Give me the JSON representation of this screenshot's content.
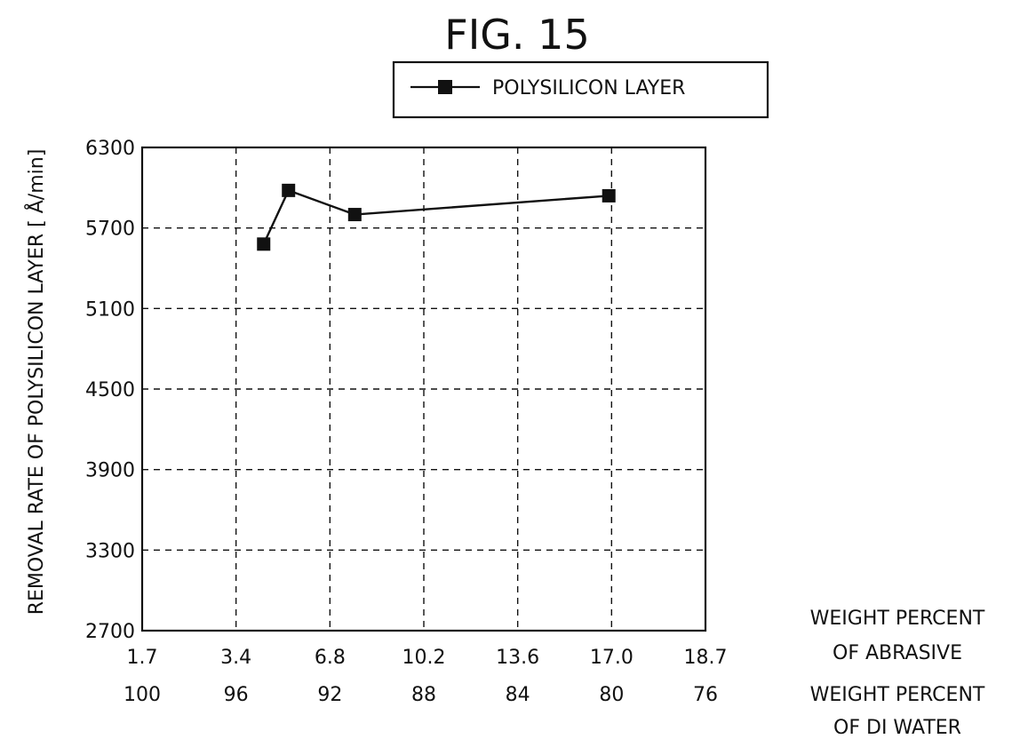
{
  "chart_data": {
    "type": "line",
    "title": "FIG. 15",
    "ylabel": "REMOVAL RATE OF POLYSILICON LAYER [ Å/min]",
    "xlabel_top": [
      "WEIGHT PERCENT",
      "OF ABRASIVE"
    ],
    "xlabel_bottom": [
      "WEIGHT PERCENT",
      "OF DI WATER"
    ],
    "x_ticks": [
      "1.7",
      "3.4",
      "6.8",
      "10.2",
      "13.6",
      "17.0",
      "18.7"
    ],
    "x_ticks_secondary": [
      "100",
      "96",
      "92",
      "88",
      "84",
      "80",
      "76"
    ],
    "y_ticks": [
      "6300",
      "5700",
      "5100",
      "4500",
      "3900",
      "3300",
      "2700"
    ],
    "ylim": [
      2700,
      6300
    ],
    "grid": true,
    "legend_position": "top-right",
    "series": [
      {
        "name": "POLYSILICON LAYER",
        "marker": "square",
        "x": [
          4.4,
          5.3,
          7.7,
          16.9
        ],
        "y": [
          5580,
          5980,
          5800,
          5940
        ]
      }
    ]
  }
}
